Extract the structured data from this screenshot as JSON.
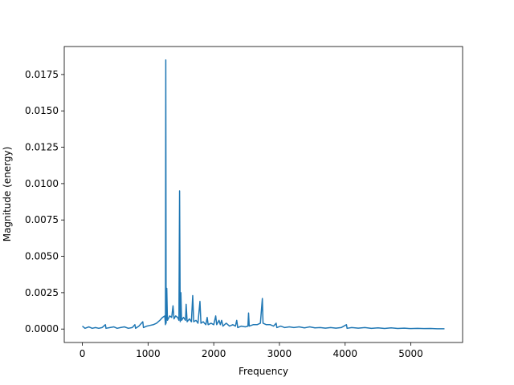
{
  "chart_data": {
    "type": "line",
    "x_label": "Frequency",
    "y_label": "Magnitude (energy)",
    "x": [
      0,
      40,
      100,
      150,
      200,
      250,
      300,
      350,
      360,
      420,
      480,
      530,
      580,
      640,
      700,
      760,
      800,
      810,
      860,
      920,
      930,
      980,
      1030,
      1080,
      1130,
      1180,
      1220,
      1255,
      1265,
      1270,
      1275,
      1285,
      1295,
      1330,
      1360,
      1380,
      1395,
      1420,
      1450,
      1470,
      1480,
      1490,
      1500,
      1510,
      1540,
      1570,
      1580,
      1595,
      1630,
      1660,
      1680,
      1695,
      1730,
      1760,
      1790,
      1805,
      1840,
      1880,
      1900,
      1915,
      1960,
      2000,
      2030,
      2045,
      2080,
      2100,
      2120,
      2140,
      2190,
      2240,
      2290,
      2330,
      2350,
      2365,
      2420,
      2480,
      2520,
      2530,
      2540,
      2600,
      2660,
      2710,
      2740,
      2750,
      2800,
      2860,
      2910,
      2950,
      2960,
      3020,
      3080,
      3150,
      3220,
      3300,
      3380,
      3460,
      3540,
      3620,
      3700,
      3780,
      3860,
      3940,
      4020,
      4030,
      4100,
      4200,
      4300,
      4400,
      4500,
      4600,
      4700,
      4800,
      4900,
      5000,
      5100,
      5200,
      5300,
      5400,
      5512.5
    ],
    "series": [
      {
        "name": "Magnitude",
        "color": "#1f77b4",
        "values": [
          0.0002,
          5e-05,
          0.00015,
          5e-05,
          0.0001,
          5e-05,
          0.0001,
          0.0003,
          5e-05,
          0.0001,
          0.00015,
          5e-05,
          0.0001,
          0.00015,
          5e-05,
          0.0001,
          0.0003,
          5e-05,
          0.0002,
          0.0005,
          0.0001,
          0.0002,
          0.00025,
          0.0003,
          0.0004,
          0.0006,
          0.0008,
          0.0009,
          0.0003,
          0.0185,
          0.0004,
          0.0028,
          0.0006,
          0.0009,
          0.0008,
          0.0016,
          0.0007,
          0.0009,
          0.0008,
          0.0006,
          0.0095,
          0.0005,
          0.0025,
          0.0006,
          0.0008,
          0.0006,
          0.0017,
          0.0005,
          0.0007,
          0.0005,
          0.0023,
          0.0005,
          0.0006,
          0.0004,
          0.0019,
          0.0004,
          0.0005,
          0.0003,
          0.0008,
          0.0003,
          0.0004,
          0.0003,
          0.0009,
          0.0003,
          0.0006,
          0.0003,
          0.0006,
          0.0002,
          0.0004,
          0.0002,
          0.0003,
          0.0002,
          0.0006,
          0.0001,
          0.0002,
          0.00015,
          0.0002,
          0.0011,
          0.0002,
          0.0003,
          0.0003,
          0.0004,
          0.0021,
          0.0004,
          0.0003,
          0.0003,
          0.0002,
          0.0004,
          0.0001,
          0.0002,
          0.0001,
          0.00015,
          0.0001,
          0.00015,
          8e-05,
          0.00015,
          8e-05,
          0.0001,
          6e-05,
          0.0001,
          6e-05,
          0.0001,
          0.0003,
          5e-05,
          0.0001,
          6e-05,
          0.0001,
          5e-05,
          8e-05,
          4e-05,
          8e-05,
          4e-05,
          6e-05,
          3e-05,
          5e-05,
          3e-05,
          4e-05,
          2e-05,
          2e-05
        ]
      }
    ],
    "xlim": [
      -275.6,
      5788.1
    ],
    "ylim": [
      -0.000925,
      0.019425
    ],
    "xticks": [
      0,
      1000,
      2000,
      3000,
      4000,
      5000
    ],
    "yticks": [
      {
        "value": 0,
        "label": "0.0000"
      },
      {
        "value": 0.0025,
        "label": "0.0025"
      },
      {
        "value": 0.005,
        "label": "0.0050"
      },
      {
        "value": 0.0075,
        "label": "0.0075"
      },
      {
        "value": 0.01,
        "label": "0.0100"
      },
      {
        "value": 0.0125,
        "label": "0.0125"
      },
      {
        "value": 0.015,
        "label": "0.0150"
      },
      {
        "value": 0.0175,
        "label": "0.0175"
      }
    ],
    "grid": false
  }
}
